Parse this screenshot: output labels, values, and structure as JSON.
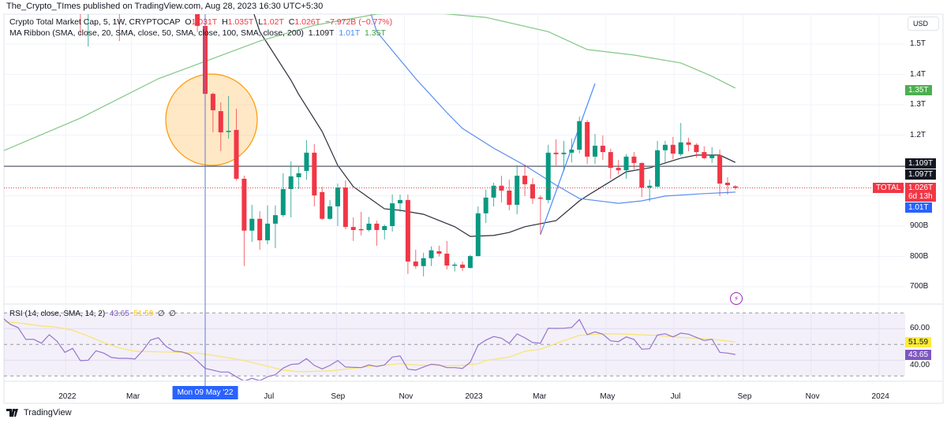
{
  "banner": "The_Crypto_TImes published on TradingView.com, Aug 28, 2023 16:30 UTC+5:30",
  "legend": {
    "symbol": "Crypto Total Market Cap, 5, 1W, CRYPTOCAP",
    "o_label": "O",
    "o": "1.031T",
    "h_label": "H",
    "h": "1.035T",
    "l_label": "L",
    "l": "1.02T",
    "c_label": "C",
    "c": "1.026T",
    "change": "−7.972B (−0.77%)",
    "ma_title": "MA Ribbon (SMA, close, 20, SMA, close, 50, SMA, close, 100, SMA, close, 200)",
    "ma20": "1.109T",
    "ma50": "1.01T",
    "ma200": "1.35T"
  },
  "rsi_legend": {
    "title": "RSI (14, close, SMA, 14, 2)",
    "rsi": "43.65",
    "sma": "51.59",
    "extra1": "∅",
    "extra2": "∅"
  },
  "price_axis": {
    "currency": "USD",
    "ticks": [
      {
        "label": "1.5T",
        "value": 1500
      },
      {
        "label": "1.4T",
        "value": 1400
      },
      {
        "label": "1.3T",
        "value": 1300
      },
      {
        "label": "1.2T",
        "value": 1200
      },
      {
        "label": "900B",
        "value": 900
      },
      {
        "label": "800B",
        "value": 800
      },
      {
        "label": "700B",
        "value": 700
      }
    ],
    "tags": [
      {
        "label": "1.35T",
        "value": 1350,
        "color": "#4caf50"
      },
      {
        "label": "1.109T",
        "value": 1109,
        "color": "#131722"
      },
      {
        "label": "1.097T",
        "value": 1097,
        "color": "#131722"
      },
      {
        "label": "1.01T",
        "value": 1012,
        "color": "#2962ff"
      }
    ],
    "last_price": {
      "symbol_tag": "TOTAL",
      "label": "1.026T",
      "countdown": "6d 13h",
      "value": 1026,
      "color": "#f23645"
    }
  },
  "rsi_axis": {
    "ticks": [
      {
        "label": "60.00",
        "value": 60
      },
      {
        "label": "40.00",
        "value": 40
      }
    ],
    "tags": [
      {
        "label": "51.59",
        "value": 51.59,
        "color": "#ffeb3b",
        "text": "#131722"
      },
      {
        "label": "43.65",
        "value": 43.65,
        "color": "#7e57c2",
        "text": "#ffffff"
      }
    ]
  },
  "time_axis": {
    "ticks": [
      {
        "label": "2022",
        "date": "2022-01-01"
      },
      {
        "label": "Mar",
        "date": "2022-03-01"
      },
      {
        "label": "Jul",
        "date": "2022-07-01"
      },
      {
        "label": "Sep",
        "date": "2022-09-01"
      },
      {
        "label": "Nov",
        "date": "2022-11-01"
      },
      {
        "label": "2023",
        "date": "2023-01-01"
      },
      {
        "label": "Mar",
        "date": "2023-03-01"
      },
      {
        "label": "May",
        "date": "2023-05-01"
      },
      {
        "label": "Jul",
        "date": "2023-07-01"
      },
      {
        "label": "Sep",
        "date": "2023-09-01"
      },
      {
        "label": "Nov",
        "date": "2023-11-01"
      },
      {
        "label": "2024",
        "date": "2024-01-01"
      }
    ],
    "crosshair": {
      "label": "Mon 09 May '22",
      "date": "2022-05-09"
    }
  },
  "footer": {
    "brand": "TradingView"
  },
  "colors": {
    "up": "#089981",
    "down": "#f23645",
    "ma20": "#2a2e39",
    "ma50": "#5b8def",
    "ma200": "#81c784",
    "rsi": "#7e57c2",
    "rsi_sma": "#f9e46b",
    "annotation": "#ff9800"
  },
  "icons": {
    "alert": "lightning-icon",
    "logo": "tradingview-logo"
  },
  "chart_data": {
    "type": "candlestick",
    "interval": "1W",
    "units": "USD billions",
    "ylim": [
      660,
      1640
    ],
    "candles_columns": [
      "date",
      "open",
      "high",
      "low",
      "close"
    ],
    "candles": [
      [
        "2022-01-17",
        1950,
        2000,
        1531,
        1780
      ],
      [
        "2022-01-24",
        1780,
        1850,
        1492,
        1820
      ],
      [
        "2022-02-21",
        1850,
        1900,
        1510,
        1760
      ],
      [
        "2022-05-02",
        1700,
        1720,
        1540,
        1560
      ],
      [
        "2022-05-09",
        1560,
        1600,
        1095,
        1336
      ],
      [
        "2022-05-16",
        1336,
        1340,
        1209,
        1282
      ],
      [
        "2022-05-23",
        1279,
        1308,
        1147,
        1209
      ],
      [
        "2022-05-30",
        1212,
        1329,
        1188,
        1214
      ],
      [
        "2022-06-06",
        1217,
        1287,
        1050,
        1056
      ],
      [
        "2022-06-13",
        1056,
        1066,
        768,
        885
      ],
      [
        "2022-06-20",
        885,
        970,
        848,
        924
      ],
      [
        "2022-06-27",
        924,
        949,
        822,
        853
      ],
      [
        "2022-07-04",
        853,
        968,
        840,
        908
      ],
      [
        "2022-07-11",
        908,
        968,
        827,
        936
      ],
      [
        "2022-07-18",
        936,
        1074,
        930,
        1022
      ],
      [
        "2022-07-25",
        1022,
        1113,
        929,
        1064
      ],
      [
        "2022-08-01",
        1061,
        1095,
        1022,
        1074
      ],
      [
        "2022-08-08",
        1082,
        1183,
        1053,
        1142
      ],
      [
        "2022-08-15",
        1142,
        1170,
        965,
        1001
      ],
      [
        "2022-08-22",
        1012,
        1030,
        920,
        924
      ],
      [
        "2022-08-29",
        924,
        986,
        920,
        965
      ],
      [
        "2022-09-05",
        965,
        1040,
        900,
        1027
      ],
      [
        "2022-09-12",
        1027,
        1051,
        890,
        897
      ],
      [
        "2022-09-19",
        897,
        929,
        851,
        887
      ],
      [
        "2022-09-26",
        890,
        947,
        869,
        887
      ],
      [
        "2022-10-03",
        887,
        930,
        882,
        908
      ],
      [
        "2022-10-10",
        908,
        918,
        835,
        887
      ],
      [
        "2022-10-17",
        887,
        905,
        856,
        900
      ],
      [
        "2022-10-24",
        900,
        1004,
        882,
        975
      ],
      [
        "2022-10-31",
        975,
        1004,
        947,
        986
      ],
      [
        "2022-11-07",
        986,
        1004,
        742,
        783
      ],
      [
        "2022-11-14",
        783,
        822,
        760,
        768
      ],
      [
        "2022-11-21",
        768,
        812,
        734,
        794
      ],
      [
        "2022-11-28",
        794,
        833,
        768,
        820
      ],
      [
        "2022-12-05",
        817,
        835,
        800,
        809
      ],
      [
        "2022-12-12",
        809,
        851,
        757,
        770
      ],
      [
        "2022-12-19",
        770,
        780,
        750,
        773
      ],
      [
        "2022-12-26",
        773,
        783,
        752,
        762
      ],
      [
        "2023-01-02",
        762,
        805,
        760,
        801
      ],
      [
        "2023-01-09",
        801,
        965,
        800,
        942
      ],
      [
        "2023-01-16",
        942,
        1020,
        910,
        994
      ],
      [
        "2023-01-23",
        994,
        1043,
        965,
        1033
      ],
      [
        "2023-01-30",
        1033,
        1066,
        978,
        1017
      ],
      [
        "2023-02-06",
        1017,
        1053,
        952,
        970
      ],
      [
        "2023-02-13",
        970,
        1100,
        939,
        1066
      ],
      [
        "2023-02-20",
        1066,
        1103,
        999,
        1038
      ],
      [
        "2023-02-27",
        1038,
        1058,
        973,
        991
      ],
      [
        "2023-03-06",
        994,
        1001,
        872,
        991
      ],
      [
        "2023-03-13",
        986,
        1168,
        975,
        1142
      ],
      [
        "2023-03-20",
        1142,
        1186,
        1100,
        1137
      ],
      [
        "2023-03-27",
        1137,
        1181,
        1082,
        1142
      ],
      [
        "2023-04-03",
        1142,
        1188,
        1110,
        1152
      ],
      [
        "2023-04-10",
        1152,
        1261,
        1140,
        1246
      ],
      [
        "2023-04-17",
        1243,
        1250,
        1105,
        1129
      ],
      [
        "2023-04-24",
        1129,
        1204,
        1105,
        1165
      ],
      [
        "2023-05-01",
        1165,
        1199,
        1118,
        1144
      ],
      [
        "2023-05-08",
        1144,
        1155,
        1056,
        1092
      ],
      [
        "2023-05-15",
        1092,
        1118,
        1070,
        1084
      ],
      [
        "2023-05-22",
        1084,
        1137,
        1056,
        1129
      ],
      [
        "2023-05-29",
        1129,
        1144,
        1087,
        1108
      ],
      [
        "2023-06-05",
        1108,
        1110,
        996,
        1027
      ],
      [
        "2023-06-12",
        1027,
        1053,
        981,
        1033
      ],
      [
        "2023-06-19",
        1030,
        1181,
        1028,
        1150
      ],
      [
        "2023-06-26",
        1150,
        1181,
        1110,
        1168
      ],
      [
        "2023-07-03",
        1168,
        1194,
        1121,
        1139
      ],
      [
        "2023-07-10",
        1137,
        1240,
        1130,
        1176
      ],
      [
        "2023-07-17",
        1176,
        1191,
        1147,
        1168
      ],
      [
        "2023-07-24",
        1168,
        1173,
        1126,
        1144
      ],
      [
        "2023-07-31",
        1144,
        1163,
        1120,
        1124
      ],
      [
        "2023-08-07",
        1124,
        1160,
        1108,
        1134
      ],
      [
        "2023-08-14",
        1134,
        1152,
        999,
        1040
      ],
      [
        "2023-08-21",
        1043,
        1061,
        1004,
        1035
      ],
      [
        "2023-08-28",
        1031,
        1035,
        1020,
        1026
      ]
    ],
    "ma": [
      {
        "name": "SMA 20",
        "color_key": "ma20",
        "points": [
          [
            "2022-06-20",
            1620
          ],
          [
            "2022-06-27",
            1541
          ],
          [
            "2022-07-25",
            1381
          ],
          [
            "2022-08-01",
            1334
          ],
          [
            "2022-08-22",
            1212
          ],
          [
            "2022-09-05",
            1100
          ],
          [
            "2022-09-19",
            1030
          ],
          [
            "2022-10-17",
            957
          ],
          [
            "2022-10-31",
            952
          ],
          [
            "2022-11-21",
            939
          ],
          [
            "2022-12-19",
            898
          ],
          [
            "2023-01-02",
            866
          ],
          [
            "2023-01-23",
            869
          ],
          [
            "2023-02-06",
            879
          ],
          [
            "2023-02-20",
            898
          ],
          [
            "2023-03-20",
            918
          ],
          [
            "2023-04-10",
            983
          ],
          [
            "2023-04-17",
            1000
          ],
          [
            "2023-05-22",
            1079
          ],
          [
            "2023-06-12",
            1092
          ],
          [
            "2023-06-26",
            1108
          ],
          [
            "2023-07-10",
            1124
          ],
          [
            "2023-07-24",
            1134
          ],
          [
            "2023-08-14",
            1134
          ],
          [
            "2023-08-28",
            1110
          ]
        ]
      },
      {
        "name": "SMA 50",
        "color_key": "ma50",
        "points": [
          [
            "2022-10-03",
            1620
          ],
          [
            "2022-10-10",
            1541
          ],
          [
            "2022-11-14",
            1386
          ],
          [
            "2022-12-12",
            1274
          ],
          [
            "2022-12-26",
            1222
          ],
          [
            "2023-01-23",
            1157
          ],
          [
            "2023-02-20",
            1100
          ],
          [
            "2023-03-20",
            1035
          ],
          [
            "2023-04-10",
            991
          ],
          [
            "2023-05-15",
            975
          ],
          [
            "2023-06-05",
            983
          ],
          [
            "2023-06-26",
            999
          ],
          [
            "2023-07-31",
            1007
          ],
          [
            "2023-08-28",
            1012
          ]
        ]
      },
      {
        "name": "SMA 200",
        "color_key": "ma200",
        "points": [
          [
            "2021-11-08",
            1147
          ],
          [
            "2022-01-17",
            1256
          ],
          [
            "2022-03-28",
            1386
          ],
          [
            "2022-05-09",
            1443
          ],
          [
            "2022-06-27",
            1510
          ],
          [
            "2022-08-15",
            1562
          ],
          [
            "2022-10-10",
            1599
          ],
          [
            "2022-11-21",
            1606
          ],
          [
            "2023-01-16",
            1588
          ],
          [
            "2023-03-13",
            1541
          ],
          [
            "2023-04-17",
            1482
          ],
          [
            "2023-05-29",
            1464
          ],
          [
            "2023-07-10",
            1438
          ],
          [
            "2023-08-07",
            1394
          ],
          [
            "2023-08-28",
            1355
          ]
        ]
      }
    ],
    "trendline": [
      [
        "2023-03-06",
        872
      ],
      [
        "2023-04-24",
        1370
      ]
    ],
    "horizontal_line": 1097,
    "rsi": {
      "start": "2021-11-08",
      "levels": [
        70,
        50,
        30
      ],
      "values": [
        67.0,
        62.8,
        60.7,
        53.2,
        53.3,
        50.8,
        56.2,
        52.0,
        45.0,
        47.5,
        39.7,
        40.0,
        46.0,
        44.5,
        41.7,
        41.2,
        41.2,
        40.8,
        46.2,
        52.8,
        54.3,
        48.7,
        45.8,
        45.3,
        43.7,
        39.5,
        34.8,
        33.7,
        32.5,
        32.5,
        29.5,
        26.7,
        28.5,
        27.0,
        29.5,
        30.8,
        35.0,
        37.3,
        37.7,
        41.0,
        36.7,
        34.5,
        36.7,
        39.8,
        35.7,
        35.5,
        35.3,
        37.0,
        36.0,
        37.0,
        42.0,
        42.7,
        34.3,
        33.7,
        35.7,
        37.5,
        37.0,
        35.3,
        35.3,
        34.8,
        38.7,
        49.5,
        52.8,
        55.0,
        54.0,
        50.7,
        56.7,
        54.2,
        51.2,
        50.8,
        60.3,
        60.2,
        60.3,
        60.8,
        65.8,
        56.2,
        58.0,
        56.5,
        52.3,
        51.8,
        54.8,
        53.2,
        47.0,
        47.3,
        56.0,
        56.8,
        54.8,
        57.2,
        56.5,
        54.5,
        52.5,
        53.3,
        45.0,
        44.5,
        43.65
      ],
      "sma": [
        [
          "2021-11-08",
          64.5
        ],
        [
          "2021-11-22",
          63.7
        ],
        [
          "2021-12-13",
          61.7
        ],
        [
          "2021-12-27",
          61.0
        ],
        [
          "2022-01-10",
          59.0
        ],
        [
          "2022-01-24",
          55.3
        ],
        [
          "2022-02-07",
          51.2
        ],
        [
          "2022-02-21",
          47.8
        ],
        [
          "2022-03-07",
          45.7
        ],
        [
          "2022-03-28",
          45.3
        ],
        [
          "2022-04-18",
          45.0
        ],
        [
          "2022-05-02",
          44.5
        ],
        [
          "2022-05-23",
          42.3
        ],
        [
          "2022-06-13",
          39.8
        ],
        [
          "2022-07-04",
          36.2
        ],
        [
          "2022-07-18",
          33.7
        ],
        [
          "2022-08-01",
          32.7
        ],
        [
          "2022-08-29",
          33.2
        ],
        [
          "2022-09-19",
          34.8
        ],
        [
          "2022-10-10",
          36.5
        ],
        [
          "2022-10-31",
          37.8
        ],
        [
          "2022-11-14",
          37.0
        ],
        [
          "2022-12-12",
          36.5
        ],
        [
          "2022-12-26",
          36.7
        ],
        [
          "2023-01-09",
          37.8
        ],
        [
          "2023-01-16",
          39.8
        ],
        [
          "2023-02-06",
          42.0
        ],
        [
          "2023-02-20",
          45.7
        ],
        [
          "2023-03-06",
          47.0
        ],
        [
          "2023-03-20",
          50.7
        ],
        [
          "2023-04-10",
          55.8
        ],
        [
          "2023-05-01",
          56.7
        ],
        [
          "2023-05-15",
          56.7
        ],
        [
          "2023-06-19",
          55.7
        ],
        [
          "2023-07-10",
          54.5
        ],
        [
          "2023-08-07",
          53.3
        ],
        [
          "2023-08-28",
          51.59
        ]
      ]
    }
  }
}
